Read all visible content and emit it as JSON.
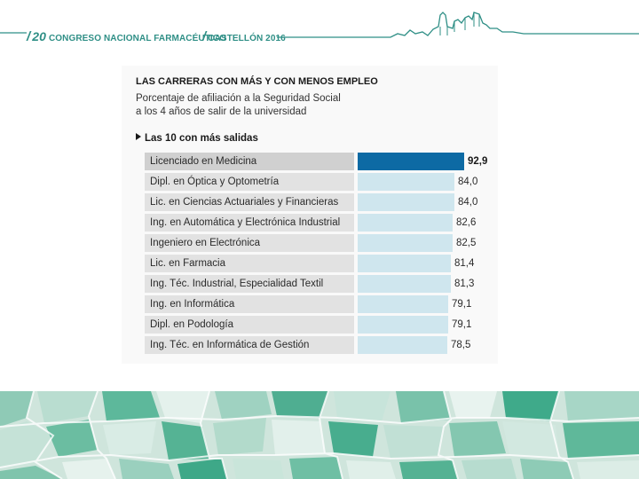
{
  "header": {
    "left": {
      "slash": "/",
      "number": "20",
      "text": " CONGRESO NACIONAL FARMACÉUTICO"
    },
    "right": {
      "slash": "/",
      "text": "CASTELLÓN 2016"
    },
    "accent": "#2f8f86"
  },
  "chart_data": {
    "type": "bar",
    "orientation": "horizontal",
    "title": "LAS CARRERAS CON MÁS Y CON MENOS EMPLEO",
    "subtitle_line1": "Porcentaje de afiliación a la Seguridad Social",
    "subtitle_line2": "a los 4 años de salir de la universidad",
    "section_label": "Las 10 con más salidas",
    "xlim": [
      0,
      92.9
    ],
    "categories": [
      "Licenciado en Medicina",
      "Dipl. en Óptica y Optometría",
      "Lic. en Ciencias Actuariales y Financieras",
      "Ing. en Automática y Electrónica Industrial",
      "Ingeniero en Electrónica",
      "Lic. en Farmacia",
      "Ing. Téc. Industrial, Especialidad Textil",
      "Ing. en Informática",
      "Dipl. en Podología",
      "Ing. Téc. en Informática de Gestión"
    ],
    "values": [
      92.9,
      84.0,
      84.0,
      82.6,
      82.5,
      81.4,
      81.3,
      79.1,
      79.1,
      78.5
    ],
    "value_labels": [
      "92,9",
      "84,0",
      "84,0",
      "82,6",
      "82,5",
      "81,4",
      "81,3",
      "79,1",
      "79,1",
      "78,5"
    ],
    "highlight_color": "#0d6aa4",
    "bar_color": "#cfe6ee"
  }
}
